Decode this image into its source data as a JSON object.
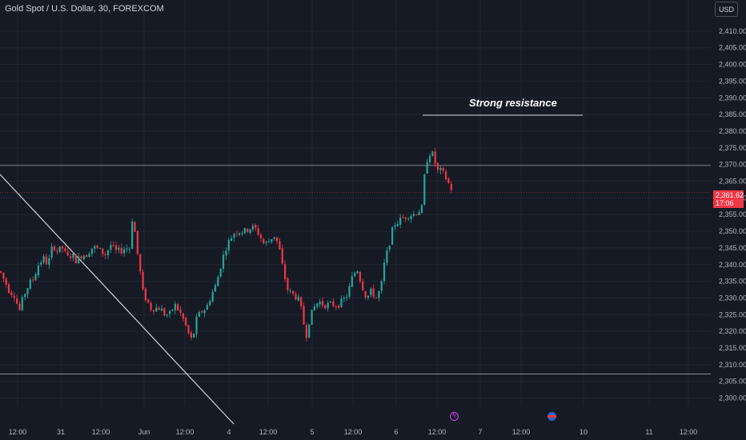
{
  "header": {
    "symbol_title": "Gold Spot / U.S. Dollar, 30, FOREXCOM"
  },
  "toolbar": {
    "currency_label": "USD"
  },
  "price_tag": {
    "price": "2,361.62",
    "countdown": "17:06"
  },
  "annotation": {
    "text": "Strong resistance"
  },
  "colors": {
    "background": "#161a25",
    "up": "#26a69a",
    "down": "#f23645",
    "grid": "#222632",
    "text": "#b2b5be",
    "line": "#d1d4dc"
  },
  "events": [
    {
      "icon": "lightning-icon"
    },
    {
      "icon": "us-flag-icon"
    }
  ],
  "chart_data": {
    "type": "candlestick",
    "title": "Gold Spot / U.S. Dollar, 30, FOREXCOM",
    "x_tick_labels": [
      "12:00",
      "31",
      "12:00",
      "Jun",
      "12:00",
      "4",
      "12:00",
      "5",
      "12:00",
      "6",
      "12:00",
      "7",
      "12:00",
      "10",
      "11",
      "12:00"
    ],
    "y_tick_labels": [
      "2,410.00",
      "2,405.00",
      "2,400.00",
      "2,395.00",
      "2,390.00",
      "2,385.00",
      "2,380.00",
      "2,375.00",
      "2,370.00",
      "2,365.00",
      "2,360.00",
      "2,355.00",
      "2,350.00",
      "2,345.00",
      "2,340.00",
      "2,335.00",
      "2,330.00",
      "2,325.00",
      "2,320.00",
      "2,315.00",
      "2,310.00",
      "2,305.00",
      "2,300.00"
    ],
    "ylim": [
      2297.5,
      2415
    ],
    "last_price": 2361.62,
    "horizontal_levels": [
      2384.8,
      2369.7,
      2307.2
    ],
    "close_path": [
      [
        0,
        2338
      ],
      [
        6,
        2335
      ],
      [
        12,
        2332
      ],
      [
        18,
        2331
      ],
      [
        24,
        2326
      ],
      [
        30,
        2331
      ],
      [
        36,
        2334
      ],
      [
        42,
        2336
      ],
      [
        48,
        2340
      ],
      [
        54,
        2342
      ],
      [
        60,
        2340
      ],
      [
        66,
        2346
      ],
      [
        72,
        2344
      ],
      [
        78,
        2345
      ],
      [
        84,
        2342
      ],
      [
        90,
        2343
      ],
      [
        96,
        2341
      ],
      [
        102,
        2343
      ],
      [
        108,
        2343
      ],
      [
        114,
        2345
      ],
      [
        120,
        2345
      ],
      [
        126,
        2344
      ],
      [
        132,
        2343
      ],
      [
        138,
        2346
      ],
      [
        144,
        2344
      ],
      [
        150,
        2344
      ],
      [
        156,
        2345
      ],
      [
        162,
        2345
      ],
      [
        166,
        2356
      ],
      [
        170,
        2346
      ],
      [
        174,
        2340
      ],
      [
        178,
        2332
      ],
      [
        182,
        2330
      ],
      [
        188,
        2327
      ],
      [
        194,
        2327
      ],
      [
        200,
        2327
      ],
      [
        206,
        2325
      ],
      [
        212,
        2325
      ],
      [
        218,
        2328
      ],
      [
        224,
        2326
      ],
      [
        230,
        2323
      ],
      [
        236,
        2319
      ],
      [
        240,
        2317
      ],
      [
        246,
        2324
      ],
      [
        252,
        2326
      ],
      [
        258,
        2327
      ],
      [
        264,
        2331
      ],
      [
        270,
        2334
      ],
      [
        276,
        2340
      ],
      [
        282,
        2345
      ],
      [
        288,
        2348
      ],
      [
        294,
        2350
      ],
      [
        300,
        2350
      ],
      [
        306,
        2350
      ],
      [
        312,
        2351
      ],
      [
        318,
        2351
      ],
      [
        324,
        2349
      ],
      [
        330,
        2346
      ],
      [
        336,
        2347
      ],
      [
        342,
        2349
      ],
      [
        348,
        2346
      ],
      [
        354,
        2338
      ],
      [
        360,
        2332
      ],
      [
        366,
        2331
      ],
      [
        372,
        2330
      ],
      [
        378,
        2325
      ],
      [
        382,
        2318
      ],
      [
        386,
        2323
      ],
      [
        392,
        2327
      ],
      [
        398,
        2329
      ],
      [
        404,
        2328
      ],
      [
        410,
        2328
      ],
      [
        416,
        2328
      ],
      [
        422,
        2328
      ],
      [
        428,
        2329
      ],
      [
        434,
        2331
      ],
      [
        440,
        2336
      ],
      [
        446,
        2339
      ],
      [
        452,
        2334
      ],
      [
        458,
        2330
      ],
      [
        464,
        2332
      ],
      [
        470,
        2330
      ],
      [
        476,
        2333
      ],
      [
        480,
        2340
      ],
      [
        486,
        2346
      ],
      [
        492,
        2352
      ],
      [
        498,
        2353
      ],
      [
        504,
        2354
      ],
      [
        510,
        2355
      ],
      [
        516,
        2355
      ],
      [
        522,
        2356
      ],
      [
        528,
        2357
      ],
      [
        531,
        2369
      ],
      [
        535,
        2373
      ],
      [
        539,
        2374
      ],
      [
        543,
        2371
      ],
      [
        547,
        2368
      ],
      [
        551,
        2368
      ],
      [
        555,
        2367
      ],
      [
        559,
        2365
      ],
      [
        563,
        2363
      ],
      [
        567,
        2362
      ]
    ]
  }
}
